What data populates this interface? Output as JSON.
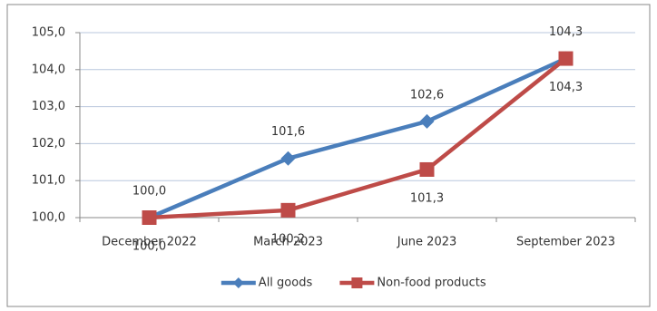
{
  "chart_data": {
    "type": "line",
    "categories": [
      "December 2022",
      "March 2023",
      "June 2023",
      "September 2023"
    ],
    "series": [
      {
        "name": "All goods",
        "color": "#4a7ebb",
        "marker": "diamond",
        "values": [
          100.0,
          101.6,
          102.6,
          104.3
        ],
        "value_labels": [
          "100,0",
          "101,6",
          "102,6",
          "104,3"
        ]
      },
      {
        "name": "Non-food products",
        "color": "#be4b48",
        "marker": "square",
        "values": [
          100.0,
          100.2,
          101.3,
          104.3
        ],
        "value_labels": [
          "100,0",
          "100,2",
          "101,3",
          "104,3"
        ]
      }
    ],
    "ylim": [
      100,
      105
    ],
    "yticks": [
      {
        "value": 100,
        "label": "100,0"
      },
      {
        "value": 101,
        "label": "101,0"
      },
      {
        "value": 102,
        "label": "102,0"
      },
      {
        "value": 103,
        "label": "103,0"
      },
      {
        "value": 104,
        "label": "104,0"
      },
      {
        "value": 105,
        "label": "105,0"
      }
    ],
    "grid": true,
    "legend": "bottom"
  }
}
